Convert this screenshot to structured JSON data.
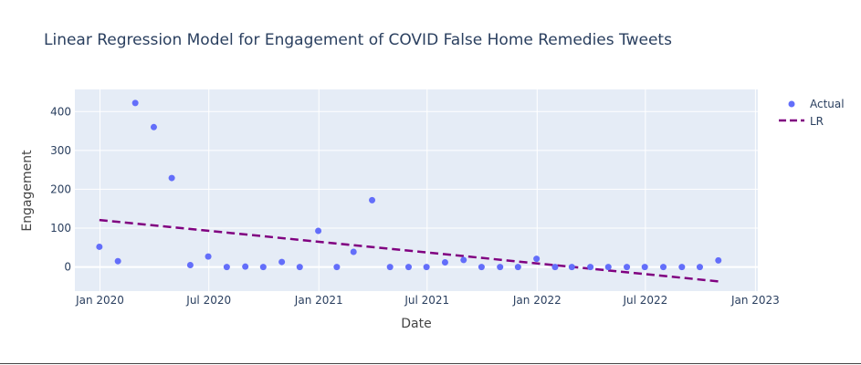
{
  "chart_data": {
    "type": "scatter",
    "title": "Linear Regression Model for Engagement of COVID False Home Remedies Tweets",
    "xlabel": "Date",
    "ylabel": "Engagement",
    "x_axis_type": "date",
    "xlim": [
      "2019-11-20",
      "2023-01-05"
    ],
    "ylim": [
      -62,
      457
    ],
    "x_ticks": [
      {
        "date": "2020-01-01",
        "label": "Jan 2020"
      },
      {
        "date": "2020-07-01",
        "label": "Jul 2020"
      },
      {
        "date": "2021-01-01",
        "label": "Jan 2021"
      },
      {
        "date": "2021-07-01",
        "label": "Jul 2021"
      },
      {
        "date": "2022-01-01",
        "label": "Jan 2022"
      },
      {
        "date": "2022-07-01",
        "label": "Jul 2022"
      },
      {
        "date": "2023-01-01",
        "label": "Jan 2023"
      }
    ],
    "y_ticks": [
      0,
      100,
      200,
      300,
      400
    ],
    "grid": true,
    "legend_position": "top-right",
    "colors": {
      "plot_bg": "#e5ecf6",
      "grid": "#ffffff",
      "actual": "#636efa",
      "lr": "#800080"
    },
    "series": [
      {
        "name": "Actual",
        "mode": "markers",
        "x": [
          "2019-12-31",
          "2020-01-31",
          "2020-02-29",
          "2020-03-31",
          "2020-04-30",
          "2020-05-31",
          "2020-06-30",
          "2020-07-31",
          "2020-08-31",
          "2020-09-30",
          "2020-10-31",
          "2020-11-30",
          "2020-12-31",
          "2021-01-31",
          "2021-02-28",
          "2021-03-31",
          "2021-04-30",
          "2021-05-31",
          "2021-06-30",
          "2021-07-31",
          "2021-08-31",
          "2021-09-30",
          "2021-10-31",
          "2021-11-30",
          "2021-12-31",
          "2022-01-31",
          "2022-02-28",
          "2022-03-31",
          "2022-04-30",
          "2022-05-31",
          "2022-06-30",
          "2022-07-31",
          "2022-08-31",
          "2022-09-30",
          "2022-10-31"
        ],
        "y": [
          52,
          15,
          422,
          360,
          229,
          5,
          27,
          0,
          1,
          0,
          13,
          0,
          93,
          0,
          39,
          172,
          0,
          0,
          0,
          12,
          18,
          0,
          0,
          0,
          21,
          0,
          0,
          0,
          0,
          0,
          0,
          0,
          0,
          0,
          17
        ]
      },
      {
        "name": "LR",
        "mode": "lines",
        "dash": "dash",
        "x": [
          "2019-12-31",
          "2022-10-31"
        ],
        "y": [
          121,
          -37
        ]
      }
    ]
  }
}
